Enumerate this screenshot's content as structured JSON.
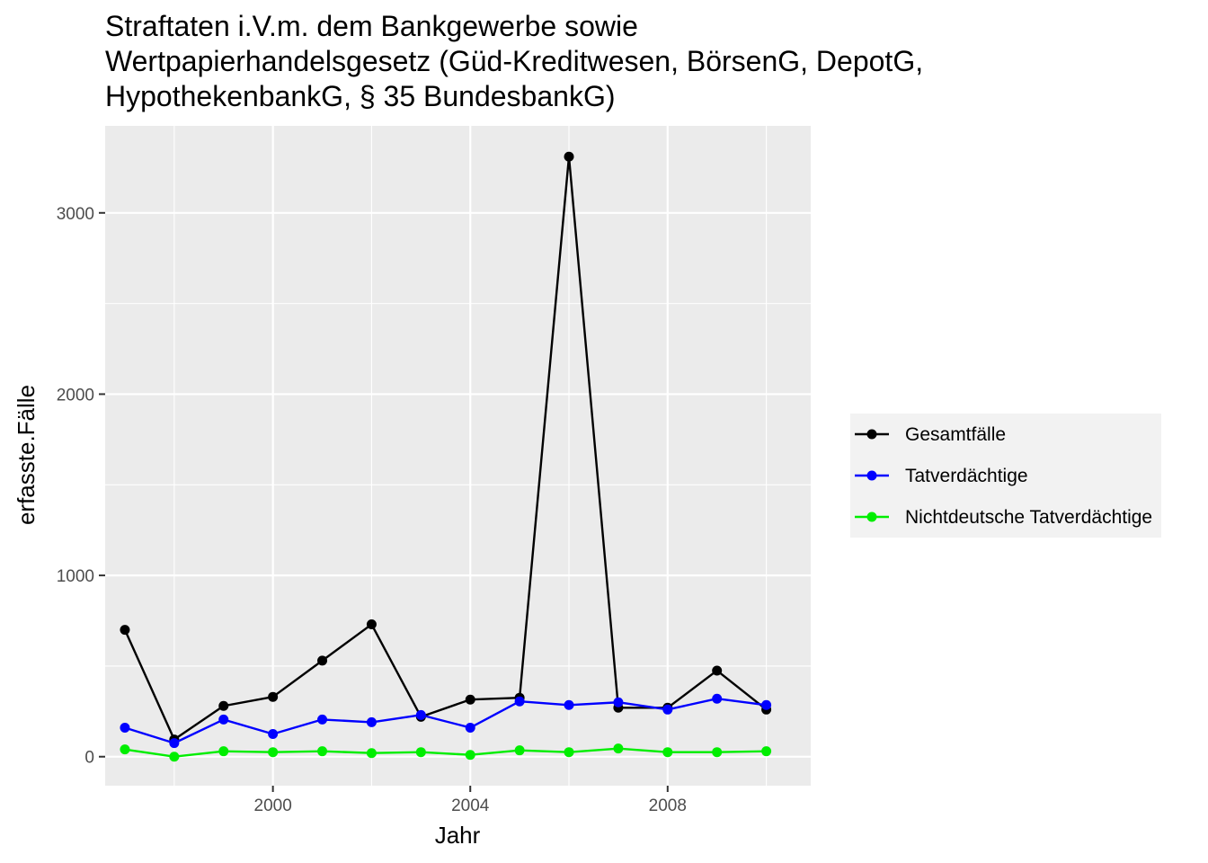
{
  "chart_data": {
    "type": "line",
    "title_lines": [
      "Straftaten i.V.m. dem Bankgewerbe sowie",
      "Wertpapierhandelsgesetz (Güd-Kreditwesen, BörsenG, DepotG,",
      "HypothekenbankG, § 35 BundesbankG)"
    ],
    "xlabel": "Jahr",
    "ylabel": "erfasste.Fälle",
    "x": [
      1997,
      1998,
      1999,
      2000,
      2001,
      2002,
      2003,
      2004,
      2005,
      2006,
      2007,
      2008,
      2009,
      2010
    ],
    "xlim": [
      1996.6,
      2010.9
    ],
    "ylim": [
      -160,
      3480
    ],
    "x_ticks": [
      2000,
      2004,
      2008
    ],
    "x_tick_labels": [
      "2000",
      "2004",
      "2008"
    ],
    "y_ticks": [
      0,
      1000,
      2000,
      3000
    ],
    "y_tick_labels": [
      "0",
      "1000",
      "2000",
      "3000"
    ],
    "grid": true,
    "legend_position": "right",
    "series": [
      {
        "name": "Gesamtfälle",
        "color": "#000000",
        "values": [
          700,
          95,
          280,
          330,
          530,
          730,
          220,
          315,
          325,
          3310,
          270,
          270,
          475,
          260
        ]
      },
      {
        "name": "Tatverdächtige",
        "color": "#0000ff",
        "values": [
          160,
          75,
          205,
          125,
          205,
          190,
          230,
          160,
          305,
          285,
          300,
          260,
          320,
          285
        ]
      },
      {
        "name": "Nichtdeutsche Tatverdächtige",
        "color": "#00ee00",
        "values": [
          40,
          0,
          30,
          25,
          30,
          20,
          25,
          10,
          35,
          25,
          45,
          25,
          25,
          30
        ]
      }
    ]
  }
}
